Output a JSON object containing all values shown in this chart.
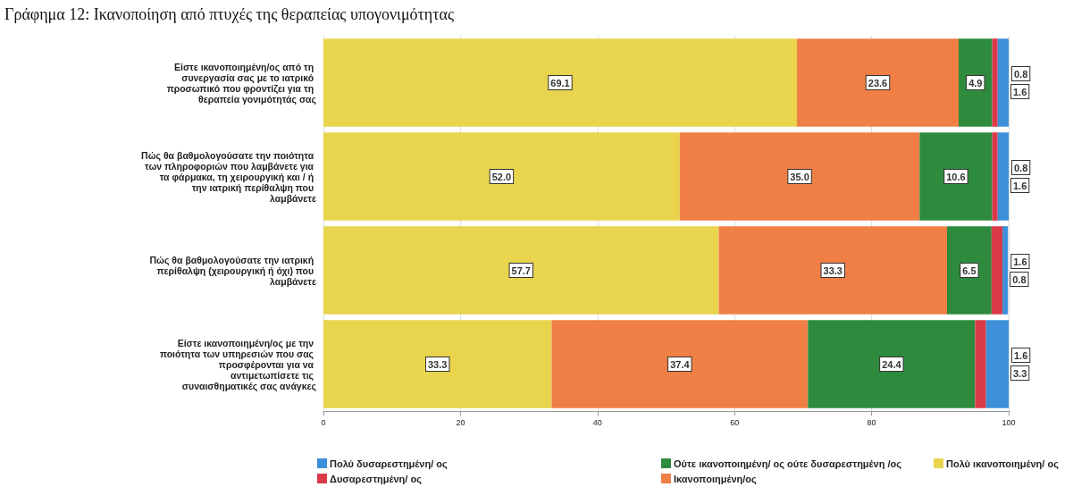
{
  "chart_data": {
    "type": "bar",
    "orientation": "horizontal",
    "stacked": true,
    "title": "Γράφημα 12: Ικανοποίηση από πτυχές της θεραπείας υπογονιμότητας",
    "categories": [
      "Είστε ικανοποιημένη/ος από τη συνεργασία σας με το ιατρικό προσωπικό που φροντίζει για τη θεραπεία γονιμότητάς σας",
      "Πώς θα βαθμολογούσατε την ποιότητα των πληροφοριών που λαμβάνετε για τα φάρμακα, τη χειρουργική και / ή την ιατρική περίθαλψη που λαμβάνετε",
      "Πώς θα βαθμολογούσατε την ιατρική περίθαλψη (χειρουργική ή όχι) που λαμβάνετε",
      "Είστε ικανοποιημένη/ος με την ποιότητα των υπηρεσιών που σας προσφέρονται για να αντιμετωπίσετε τις συναισθηματικές σας ανάγκες"
    ],
    "series": [
      {
        "name": "Πολύ ικανοποιημένη/ ος",
        "color": "#e8d44d",
        "values": [
          69.1,
          52.0,
          57.7,
          33.3
        ],
        "value_labels": [
          "69.1",
          "52.0",
          "57.7",
          "33.3"
        ]
      },
      {
        "name": "Ικανοποιημένη/ος",
        "color": "#ef7f45",
        "values": [
          23.6,
          35.0,
          33.3,
          37.4
        ],
        "value_labels": [
          "23.6",
          "35.0",
          "33.3",
          "37.4"
        ]
      },
      {
        "name": "Ούτε ικανοποιημένη/ ος ούτε δυσαρεστημένη /ος",
        "color": "#2e8b3e",
        "values": [
          4.9,
          10.6,
          6.5,
          24.4
        ],
        "value_labels": [
          "4.9",
          "10.6",
          "6.5",
          "24.4"
        ]
      },
      {
        "name": "Δυσαρεστημένη/ ος",
        "color": "#d93a48",
        "values": [
          0.8,
          0.8,
          1.6,
          1.6
        ],
        "value_labels": [
          "0.8",
          "0.8",
          "1.6",
          "1.6"
        ]
      },
      {
        "name": "Πολύ δυσαρεστημένη/ ος",
        "color": "#3d8fd9",
        "values": [
          1.6,
          1.6,
          0.8,
          3.3
        ],
        "value_labels": [
          "1.6",
          "1.6",
          "0.8",
          "3.3"
        ]
      }
    ],
    "xlim": [
      0,
      100
    ],
    "xticks": [
      0,
      20,
      40,
      60,
      80,
      100
    ],
    "grid": "x",
    "legend": "bottom"
  }
}
